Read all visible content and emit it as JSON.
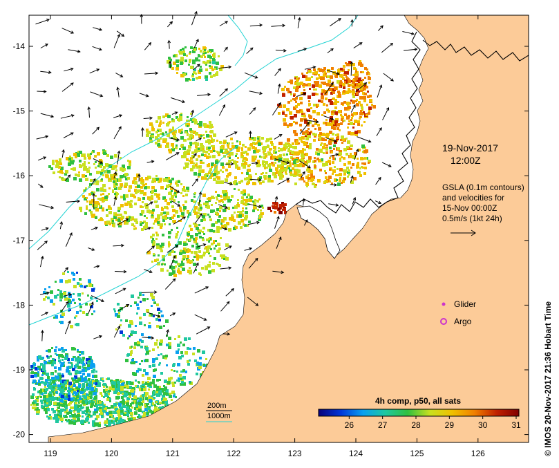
{
  "map": {
    "lat_ticks": [
      "-14",
      "-15",
      "-16",
      "-17",
      "-18",
      "-19",
      "-20"
    ],
    "lon_ticks": [
      "119",
      "120",
      "121",
      "122",
      "123",
      "124",
      "125",
      "126"
    ],
    "date": "19-Nov-2017",
    "time": "12:00Z",
    "info_lines": [
      "GSLA (0.1m contours)",
      "and velocities for",
      "15-Nov 00:00Z",
      "0.5m/s (1kt 24h)"
    ],
    "legend": [
      {
        "label": "Glider",
        "color": "#cc33cc"
      },
      {
        "label": "Argo",
        "color": "#cc33cc"
      }
    ],
    "depth_contours": [
      {
        "label": "200m",
        "color": "#000000"
      },
      {
        "label": "1000m",
        "color": "#22d3d3"
      }
    ],
    "colorbar_title": "4h comp, p50, all sats",
    "colorbar_ticks": [
      "26",
      "27",
      "28",
      "29",
      "30",
      "31"
    ],
    "colorbar_min": 25,
    "colorbar_max": 31,
    "side_label": "© IMOS 20-Nov-2017 21:36 Hobart Time",
    "colors": {
      "land": "#fccb98",
      "contour": "#22d3d3",
      "colorbar_stops": [
        "#08007a",
        "#0036d8",
        "#0aa0f0",
        "#20c8a0",
        "#30c040",
        "#c8e020",
        "#f0c000",
        "#f08000",
        "#c02000",
        "#800000"
      ]
    }
  }
}
